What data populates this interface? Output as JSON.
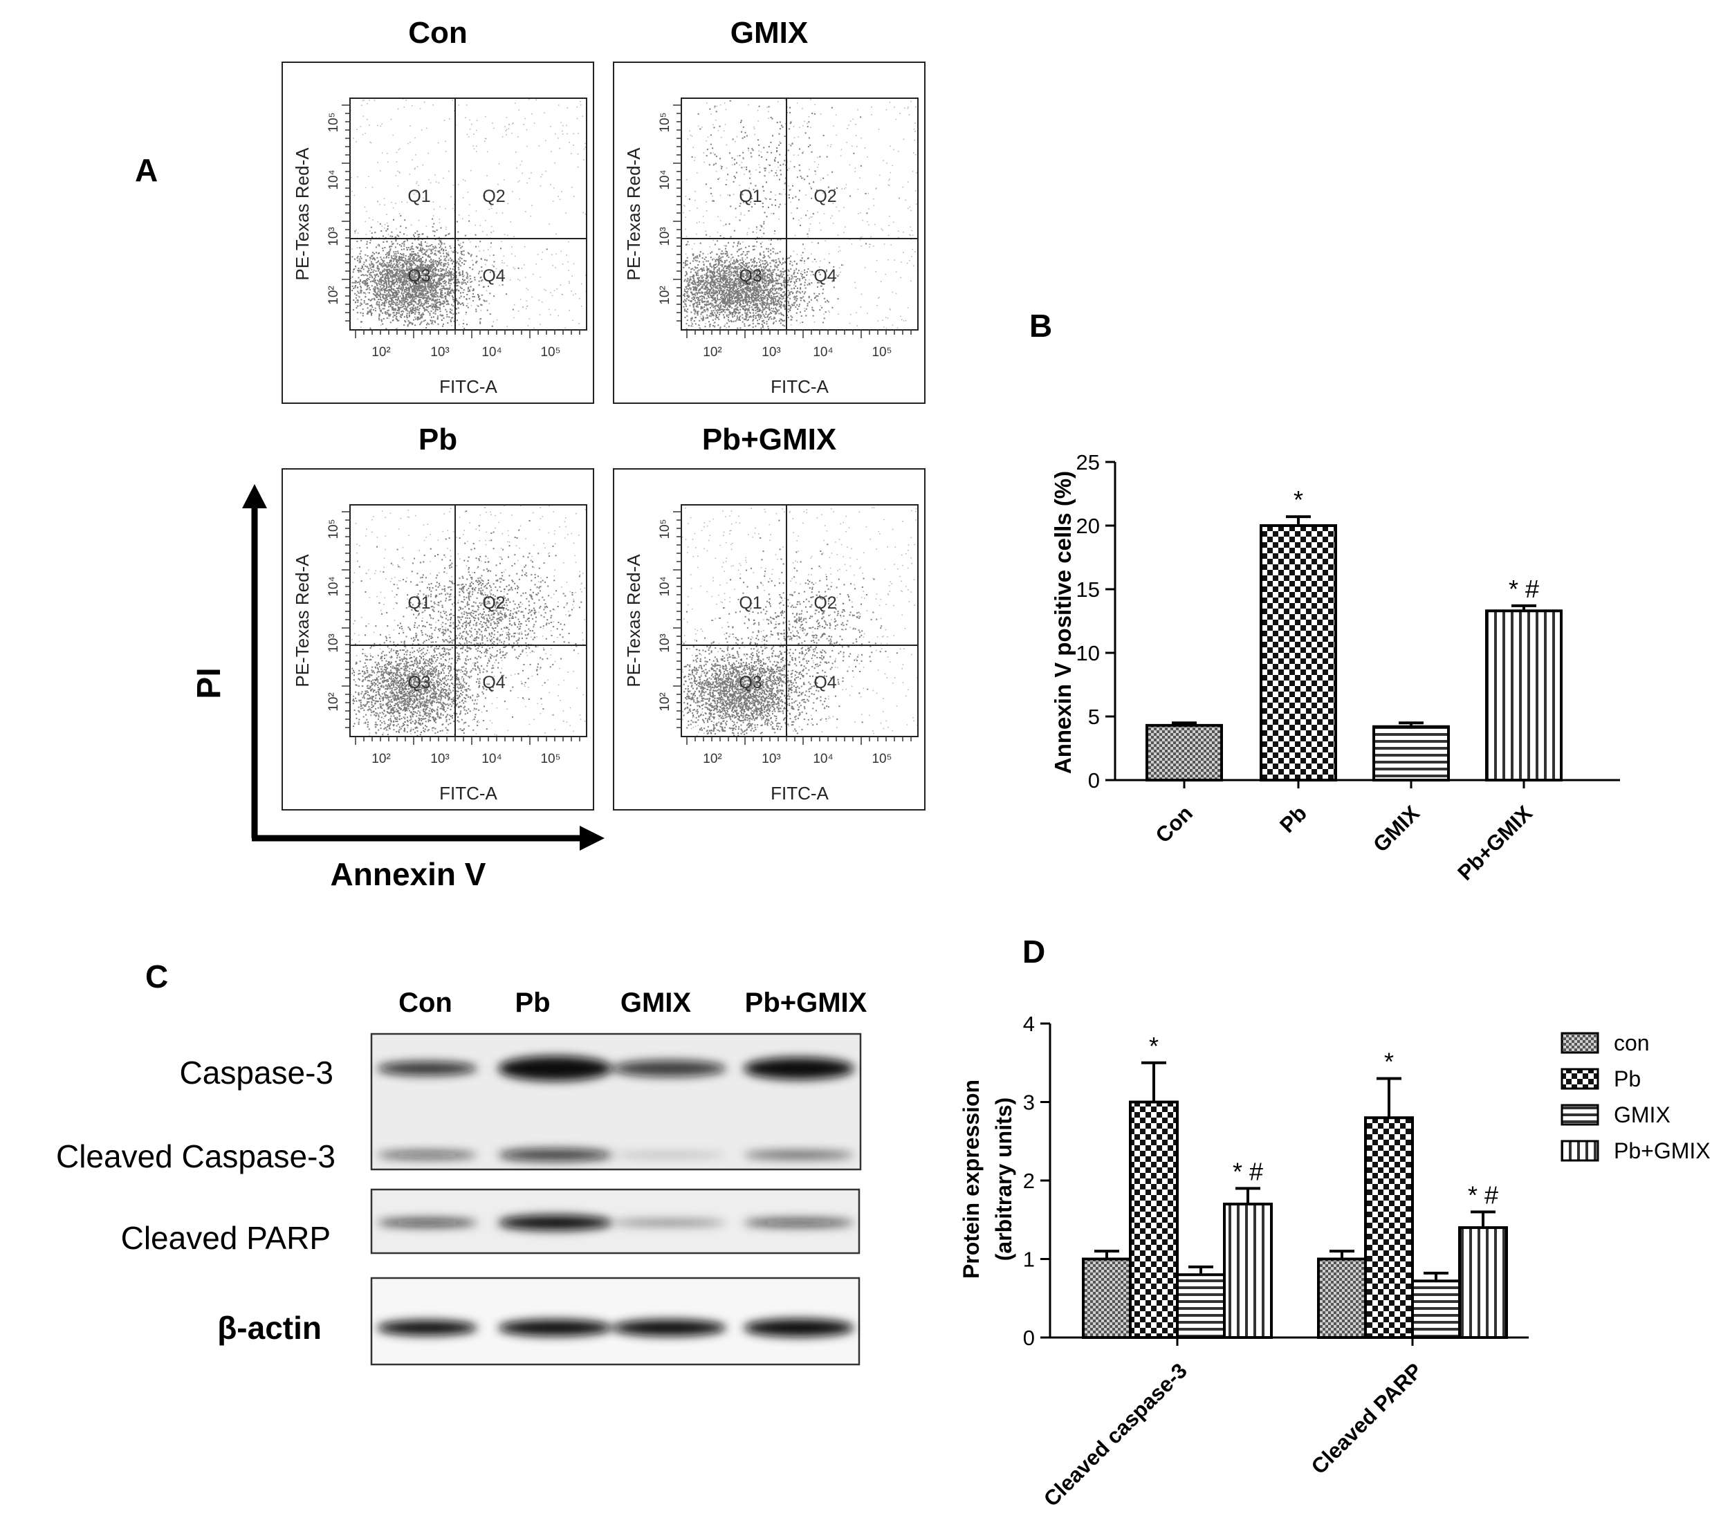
{
  "panels": {
    "A": {
      "letter": "A",
      "plots": [
        {
          "title": "Con",
          "seed": 11,
          "pattern": "con"
        },
        {
          "title": "GMIX",
          "seed": 23,
          "pattern": "gmix"
        },
        {
          "title": "Pb",
          "seed": 37,
          "pattern": "pb"
        },
        {
          "title": "Pb+GMIX",
          "seed": 51,
          "pattern": "pbgmix"
        }
      ],
      "plot_x_label": "FITC-A",
      "plot_y_label": "PE-Texas Red-A",
      "quadrants": [
        "Q1",
        "Q2",
        "Q3",
        "Q4"
      ],
      "x_ticks": [
        "10²",
        "10³",
        "10⁴",
        "10⁵"
      ],
      "y_ticks": [
        "10²",
        "10³",
        "10⁴",
        "10⁵"
      ],
      "big_axis_x": "Annexin V",
      "big_axis_y": "PI"
    },
    "B": {
      "letter": "B"
    },
    "C": {
      "letter": "C",
      "lanes": [
        "Con",
        "Pb",
        "GMIX",
        "Pb+GMIX"
      ],
      "bands": [
        "Caspase-3",
        "Cleaved Caspase-3",
        "Cleaved PARP",
        "β-actin"
      ]
    },
    "D": {
      "letter": "D"
    }
  },
  "chart_data": [
    {
      "type": "bar",
      "panel": "B",
      "categories": [
        "Con",
        "Pb",
        "GMIX",
        "Pb+GMIX"
      ],
      "values": [
        4.3,
        20.0,
        4.2,
        13.3
      ],
      "errors": [
        0.2,
        0.7,
        0.3,
        0.4
      ],
      "annotations": [
        "",
        "*",
        "",
        "* #"
      ],
      "patterns": [
        "fine-check",
        "check",
        "hstripe",
        "vstripe"
      ],
      "ylabel": "Annexin V positive cells (%)",
      "ylim": [
        0,
        25
      ],
      "yticks": [
        0,
        5,
        10,
        15,
        20,
        25
      ]
    },
    {
      "type": "bar",
      "panel": "D",
      "categories": [
        "Cleaved caspase-3",
        "Cleaved PARP"
      ],
      "series": [
        {
          "name": "con",
          "values": [
            1.0,
            1.0
          ],
          "errors": [
            0.1,
            0.1
          ],
          "annotations": [
            "",
            ""
          ],
          "pattern": "fine-check"
        },
        {
          "name": "Pb",
          "values": [
            3.0,
            2.8
          ],
          "errors": [
            0.5,
            0.5
          ],
          "annotations": [
            "*",
            "*"
          ],
          "pattern": "check"
        },
        {
          "name": "GMIX",
          "values": [
            0.8,
            0.72
          ],
          "errors": [
            0.1,
            0.1
          ],
          "annotations": [
            "",
            ""
          ],
          "pattern": "hstripe"
        },
        {
          "name": "Pb+GMIX",
          "values": [
            1.7,
            1.4
          ],
          "errors": [
            0.2,
            0.2
          ],
          "annotations": [
            "* #",
            "* #"
          ],
          "pattern": "vstripe"
        }
      ],
      "ylabel_lines": [
        "Protein expression",
        "(arbitrary units)"
      ],
      "ylim": [
        0,
        4
      ],
      "yticks": [
        0,
        1,
        2,
        3,
        4
      ],
      "legend": "right"
    }
  ]
}
